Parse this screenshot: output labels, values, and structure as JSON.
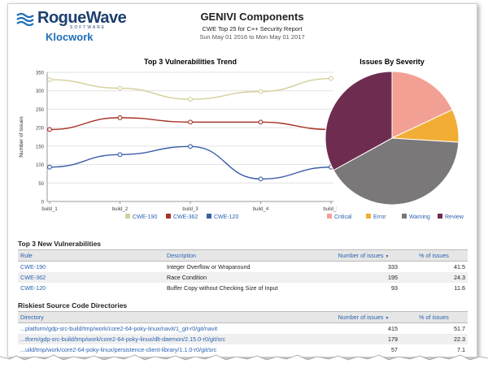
{
  "brand": {
    "name": "RogueWave",
    "tagline": "SOFTWARE",
    "product": "Klocwork"
  },
  "header": {
    "title": "GENIVI Components",
    "subtitle": "CWE Top 25 for C++ Security Report",
    "date_range": "Sun May 01 2016 to Mon May 01 2017"
  },
  "colors": {
    "cwe190": "#d4cf9a",
    "cwe362": "#a83228",
    "cwe120": "#3c5ea8",
    "critical": "#f2a093",
    "error": "#f2ad35",
    "warning": "#7a7878",
    "review": "#6e2d50",
    "link": "#2a63b0"
  },
  "chart_data": [
    {
      "type": "line",
      "title": "Top 3 Vulnerabilities Trend",
      "ylabel": "Number of issues",
      "xlabel": "",
      "categories": [
        "build_1",
        "build_2",
        "build_3",
        "build_4",
        "build_5"
      ],
      "ylim": [
        0,
        350
      ],
      "yticks": [
        "0",
        "50",
        "100",
        "150",
        "200",
        "250",
        "300",
        "350"
      ],
      "grid": true,
      "legend": "bottom",
      "series": [
        {
          "name": "CWE-190",
          "values": [
            330,
            307,
            277,
            298,
            333
          ]
        },
        {
          "name": "CWE-362",
          "values": [
            195,
            227,
            215,
            215,
            195
          ]
        },
        {
          "name": "CWE-120",
          "values": [
            93,
            127,
            149,
            61,
            93
          ]
        }
      ]
    },
    {
      "type": "pie",
      "title": "Issues By Severity",
      "legend": "bottom",
      "labels": [
        "Critical",
        "Error",
        "Warning",
        "Review"
      ],
      "values": [
        18,
        8,
        41,
        33
      ]
    }
  ],
  "vulnerabilities": {
    "title": "Top 3 New Vulnerabilities",
    "columns": {
      "rule": "Rule",
      "description": "Description",
      "issues": "Number of issues",
      "pct": "% of issues"
    },
    "rows": [
      {
        "rule": "CWE-190",
        "description": "Integer Overflow or Wraparound",
        "issues": "333",
        "pct": "41.5"
      },
      {
        "rule": "CWE-362",
        "description": "Race Condition",
        "issues": "195",
        "pct": "24.3"
      },
      {
        "rule": "CWE-120",
        "description": "Buffer Copy without Checking Size of Input",
        "issues": "93",
        "pct": "11.6"
      }
    ]
  },
  "directories": {
    "title": "Riskiest Source Code Directories",
    "columns": {
      "directory": "Directory",
      "issues": "Number of issues",
      "pct": "% of issues"
    },
    "rows": [
      {
        "directory": "...platform/gdp-src-build/tmp/work/core2-64-poky-linux/navit/1_git-r0/git/navit",
        "issues": "415",
        "pct": "51.7"
      },
      {
        "directory": "...tform/gdp-src-build/tmp/work/core2-64-poky-linux/dlt-daemon/2.15.0-r0/git/src",
        "issues": "179",
        "pct": "22.3"
      },
      {
        "directory": "...uild/tmp/work/core2-64-poky-linux/persistence-client-library/1.1.0-r0/git/src",
        "issues": "57",
        "pct": "7.1"
      }
    ]
  }
}
